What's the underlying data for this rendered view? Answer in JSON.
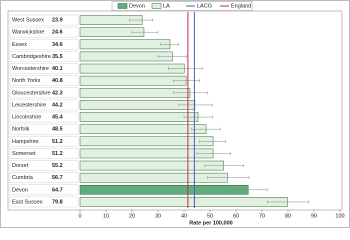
{
  "chart_data": {
    "type": "bar",
    "x_label": "Rate per 100,000",
    "categories": [
      "West Sussex",
      "Warwickshire",
      "Essex",
      "Cambridgeshire",
      "Worcestershire",
      "North Yorks",
      "Gloucestershire",
      "Leicestershire",
      "Lincolnshire",
      "Norfolk",
      "Hampshire",
      "Somerset",
      "Dorset",
      "Cumbria",
      "Devon",
      "East Sussex"
    ],
    "values": [
      23.9,
      24.6,
      34.6,
      35.5,
      40.1,
      40.8,
      42.3,
      44.2,
      45.4,
      48.5,
      51.2,
      51.2,
      55.2,
      56.7,
      64.7,
      79.8
    ],
    "ci_low": [
      19,
      20,
      31,
      30,
      34,
      36,
      36,
      38,
      40,
      43,
      46,
      45,
      48,
      49,
      58,
      72
    ],
    "ci_high": [
      28,
      30,
      38,
      41,
      47,
      46,
      49,
      51,
      51,
      54,
      56,
      58,
      63,
      65,
      72,
      88
    ],
    "bar_colors": [
      "#e2f0e0",
      "#e2f0e0",
      "#e2f0e0",
      "#e2f0e0",
      "#e2f0e0",
      "#e2f0e0",
      "#e2f0e0",
      "#e2f0e0",
      "#e2f0e0",
      "#e2f0e0",
      "#e2f0e0",
      "#e2f0e0",
      "#e2f0e0",
      "#e2f0e0",
      "#5fae7a",
      "#e2f0e0"
    ],
    "bar_legend": [
      {
        "name": "Devon",
        "color": "#5fae7a"
      },
      {
        "name": "LA",
        "color": "#e2f0e0"
      }
    ],
    "reference_lines": [
      {
        "name": "LACG",
        "value": 44,
        "color": "#4a5fc1"
      },
      {
        "name": "England",
        "value": 41.5,
        "color": "#c0304a"
      }
    ],
    "xlim": [
      0,
      100
    ],
    "xticks": [
      0,
      10,
      20,
      30,
      40,
      50,
      60,
      70,
      80,
      90,
      100
    ]
  }
}
